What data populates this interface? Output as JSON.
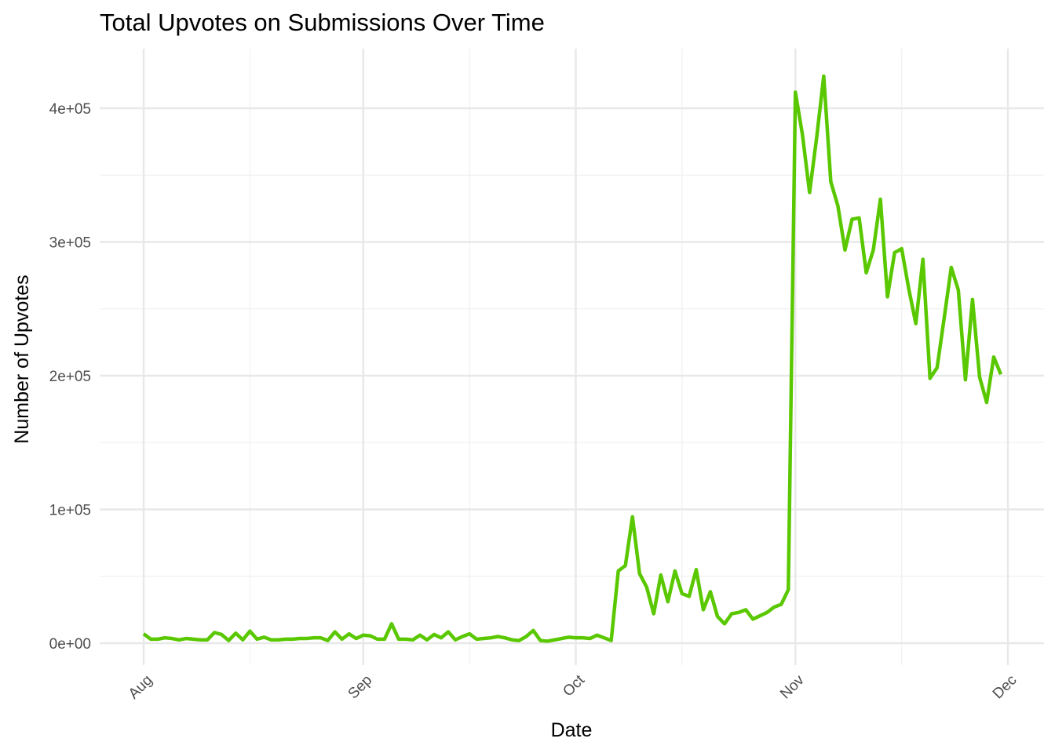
{
  "chart_data": {
    "type": "line",
    "title": "Total Upvotes on Submissions Over Time",
    "xlabel": "Date",
    "ylabel": "Number of Upvotes",
    "x_scale": "date",
    "xlim": [
      "2023-08-01",
      "2023-11-30"
    ],
    "ylim": [
      -15000,
      445000
    ],
    "x_ticks": [
      {
        "date": "2023-08-01",
        "label": "Aug"
      },
      {
        "date": "2023-09-01",
        "label": "Sep"
      },
      {
        "date": "2023-10-01",
        "label": "Oct"
      },
      {
        "date": "2023-11-01",
        "label": "Nov"
      },
      {
        "date": "2023-12-01",
        "label": "Dec"
      }
    ],
    "x_minor_ticks": [
      "2023-08-16",
      "2023-09-16",
      "2023-10-16",
      "2023-11-16"
    ],
    "y_ticks": [
      {
        "value": 0,
        "label": "0e+00"
      },
      {
        "value": 100000,
        "label": "1e+05"
      },
      {
        "value": 200000,
        "label": "2e+05"
      },
      {
        "value": 300000,
        "label": "3e+05"
      },
      {
        "value": 400000,
        "label": "4e+05"
      }
    ],
    "y_minor_ticks": [
      50000,
      150000,
      250000,
      350000
    ],
    "grid": true,
    "legend": "none",
    "color": "#5ac800",
    "series": [
      {
        "x": [
          "2023-08-01",
          "2023-08-02",
          "2023-08-03",
          "2023-08-04",
          "2023-08-05",
          "2023-08-06",
          "2023-08-07",
          "2023-08-08",
          "2023-08-09",
          "2023-08-10",
          "2023-08-11",
          "2023-08-12",
          "2023-08-13",
          "2023-08-14",
          "2023-08-15",
          "2023-08-16",
          "2023-08-17",
          "2023-08-18",
          "2023-08-19",
          "2023-08-20",
          "2023-08-21",
          "2023-08-22",
          "2023-08-23",
          "2023-08-24",
          "2023-08-25",
          "2023-08-26",
          "2023-08-27",
          "2023-08-28",
          "2023-08-29",
          "2023-08-30",
          "2023-08-31",
          "2023-09-01",
          "2023-09-02",
          "2023-09-03",
          "2023-09-04",
          "2023-09-05",
          "2023-09-06",
          "2023-09-07",
          "2023-09-08",
          "2023-09-09",
          "2023-09-10",
          "2023-09-11",
          "2023-09-12",
          "2023-09-13",
          "2023-09-14",
          "2023-09-15",
          "2023-09-16",
          "2023-09-17",
          "2023-09-18",
          "2023-09-19",
          "2023-09-20",
          "2023-09-21",
          "2023-09-22",
          "2023-09-23",
          "2023-09-24",
          "2023-09-25",
          "2023-09-26",
          "2023-09-27",
          "2023-09-28",
          "2023-09-29",
          "2023-09-30",
          "2023-10-01",
          "2023-10-02",
          "2023-10-03",
          "2023-10-04",
          "2023-10-05",
          "2023-10-06",
          "2023-10-07",
          "2023-10-08",
          "2023-10-09",
          "2023-10-10",
          "2023-10-11",
          "2023-10-12",
          "2023-10-13",
          "2023-10-14",
          "2023-10-15",
          "2023-10-16",
          "2023-10-17",
          "2023-10-18",
          "2023-10-19",
          "2023-10-20",
          "2023-10-21",
          "2023-10-22",
          "2023-10-23",
          "2023-10-24",
          "2023-10-25",
          "2023-10-26",
          "2023-10-27",
          "2023-10-28",
          "2023-10-29",
          "2023-10-30",
          "2023-10-31",
          "2023-11-01",
          "2023-11-02",
          "2023-11-03",
          "2023-11-04",
          "2023-11-05",
          "2023-11-06",
          "2023-11-07",
          "2023-11-08",
          "2023-11-09",
          "2023-11-10",
          "2023-11-11",
          "2023-11-12",
          "2023-11-13",
          "2023-11-14",
          "2023-11-15",
          "2023-11-16",
          "2023-11-17",
          "2023-11-18",
          "2023-11-19",
          "2023-11-20",
          "2023-11-21",
          "2023-11-22",
          "2023-11-23",
          "2023-11-24",
          "2023-11-25",
          "2023-11-26",
          "2023-11-27",
          "2023-11-28",
          "2023-11-29",
          "2023-11-30"
        ],
        "y": [
          7000,
          3000,
          3000,
          4000,
          3500,
          2500,
          3500,
          3000,
          2500,
          2500,
          8000,
          6500,
          2000,
          7500,
          2500,
          9000,
          3000,
          4500,
          2500,
          2500,
          3000,
          3000,
          3500,
          3500,
          4000,
          4000,
          2000,
          8500,
          3000,
          7000,
          3500,
          6000,
          5500,
          3000,
          3000,
          14500,
          3000,
          3000,
          2500,
          6000,
          2500,
          6500,
          4000,
          8500,
          2500,
          5000,
          7000,
          3000,
          3500,
          4000,
          5000,
          4000,
          2500,
          2000,
          5000,
          9500,
          2000,
          1500,
          2500,
          3500,
          4500,
          4000,
          4000,
          3500,
          6000,
          4000,
          2000,
          54000,
          58000,
          94500,
          52000,
          42000,
          22000,
          51000,
          31000,
          54000,
          37000,
          35000,
          55000,
          25000,
          38500,
          20000,
          14500,
          22000,
          23000,
          25000,
          18000,
          20500,
          23000,
          27000,
          29000,
          40000,
          412000,
          380000,
          337000,
          378000,
          424000,
          345000,
          327000,
          294000,
          317000,
          318000,
          277000,
          294000,
          332000,
          259000,
          292000,
          295000,
          265000,
          239000,
          287000,
          198000,
          206000,
          243000,
          281000,
          264000,
          197000,
          257000,
          199000,
          180000,
          214000,
          201000
        ]
      }
    ]
  }
}
